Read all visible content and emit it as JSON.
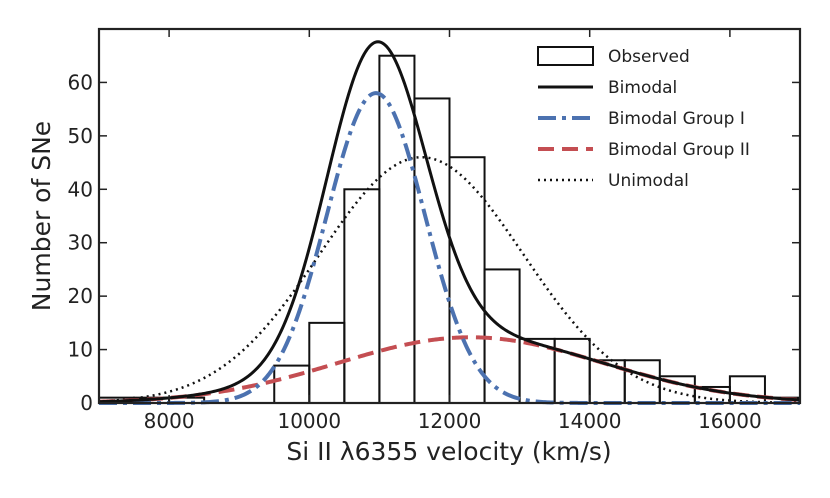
{
  "chart_data": {
    "type": "histogram",
    "title": "",
    "xlabel": "Si II λ6355 velocity (km/s)",
    "ylabel": "Number of SNe",
    "xlim": [
      7000,
      17000
    ],
    "ylim": [
      0,
      70
    ],
    "xticks": [
      8000,
      10000,
      12000,
      14000,
      16000
    ],
    "yticks": [
      0,
      10,
      20,
      30,
      40,
      50,
      60
    ],
    "legend_position": "top-right",
    "histogram": {
      "name": "Observed",
      "bin_edges": [
        7000,
        7500,
        8000,
        8500,
        9000,
        9500,
        10000,
        10500,
        11000,
        11500,
        12000,
        12500,
        13000,
        13500,
        14000,
        14500,
        15000,
        15500,
        16000,
        16500,
        17000
      ],
      "counts": [
        1,
        1,
        1,
        0,
        0,
        7,
        15,
        40,
        65,
        57,
        46,
        25,
        12,
        12,
        8,
        8,
        5,
        3,
        5,
        1
      ],
      "color": "#111111"
    },
    "series": [
      {
        "name": "Bimodal",
        "model": "sum",
        "style": "solid",
        "color": "#111111"
      },
      {
        "name": "Bimodal Group I",
        "model": "gaussian",
        "mean": 10950,
        "sigma": 700,
        "peak": 58,
        "style": "dashdot",
        "color": "#4C72B0"
      },
      {
        "name": "Bimodal Group II",
        "model": "gaussian",
        "mean": 12300,
        "sigma": 1900,
        "peak": 12.3,
        "style": "dashed",
        "color": "#C44E52"
      },
      {
        "name": "Unimodal",
        "model": "gaussian",
        "mean": 11600,
        "sigma": 1450,
        "peak": 46,
        "style": "dotted",
        "color": "#111111"
      }
    ]
  }
}
